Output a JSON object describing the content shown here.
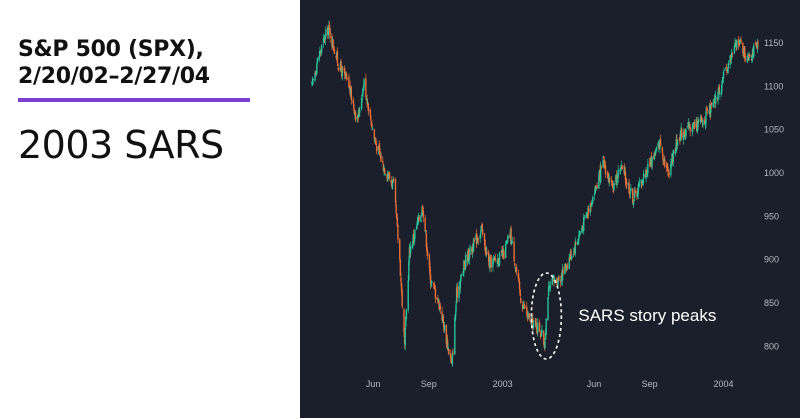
{
  "header": {
    "title_line1": "S&P 500 (SPX),",
    "title_line2": "2/20/02–2/27/04",
    "subtitle": "2003 SARS"
  },
  "colors": {
    "accent": "#7b3fd1",
    "chart_bg": "#1b1f2b",
    "up": "#2bc49b",
    "down": "#e8703a",
    "tick_text": "#b4b8c2",
    "annotation": "#ffffff"
  },
  "chart_data": {
    "type": "candlestick",
    "title": "S&P 500 (SPX), 2/20/02–2/27/04",
    "x_range": [
      "2002-02-20",
      "2004-02-27"
    ],
    "ylim": [
      775,
      1165
    ],
    "y_ticks": [
      800,
      850,
      900,
      950,
      1000,
      1050,
      1100,
      1150
    ],
    "x_ticks": [
      {
        "date": "2002-06-01",
        "label": "Jun"
      },
      {
        "date": "2002-09-01",
        "label": "Sep"
      },
      {
        "date": "2003-01-01",
        "label": "2003"
      },
      {
        "date": "2003-06-01",
        "label": "Jun"
      },
      {
        "date": "2003-09-01",
        "label": "Sep"
      },
      {
        "date": "2004-01-01",
        "label": "2004"
      }
    ],
    "grid": false,
    "legend": "none",
    "price_path": [
      [
        "2002-02-20",
        1100
      ],
      [
        "2002-03-01",
        1130
      ],
      [
        "2002-03-19",
        1168
      ],
      [
        "2002-04-05",
        1125
      ],
      [
        "2002-04-22",
        1100
      ],
      [
        "2002-05-06",
        1060
      ],
      [
        "2002-05-17",
        1105
      ],
      [
        "2002-06-03",
        1040
      ],
      [
        "2002-06-17",
        1010
      ],
      [
        "2002-07-05",
        985
      ],
      [
        "2002-07-15",
        900
      ],
      [
        "2002-07-23",
        800
      ],
      [
        "2002-07-31",
        910
      ],
      [
        "2002-08-22",
        962
      ],
      [
        "2002-09-03",
        880
      ],
      [
        "2002-09-20",
        845
      ],
      [
        "2002-10-09",
        777
      ],
      [
        "2002-10-17",
        860
      ],
      [
        "2002-11-01",
        900
      ],
      [
        "2002-11-27",
        935
      ],
      [
        "2002-12-09",
        895
      ],
      [
        "2003-01-02",
        905
      ],
      [
        "2003-01-14",
        930
      ],
      [
        "2003-01-31",
        855
      ],
      [
        "2003-02-14",
        830
      ],
      [
        "2003-03-04",
        820
      ],
      [
        "2003-03-11",
        802
      ],
      [
        "2003-03-17",
        862
      ],
      [
        "2003-03-26",
        875
      ],
      [
        "2003-04-07",
        880
      ],
      [
        "2003-04-30",
        915
      ],
      [
        "2003-05-16",
        945
      ],
      [
        "2003-06-05",
        985
      ],
      [
        "2003-06-17",
        1012
      ],
      [
        "2003-07-01",
        980
      ],
      [
        "2003-07-15",
        1008
      ],
      [
        "2003-08-05",
        970
      ],
      [
        "2003-08-28",
        1005
      ],
      [
        "2003-09-18",
        1035
      ],
      [
        "2003-10-01",
        1000
      ],
      [
        "2003-10-20",
        1045
      ],
      [
        "2003-11-14",
        1055
      ],
      [
        "2003-11-28",
        1060
      ],
      [
        "2003-12-17",
        1080
      ],
      [
        "2004-01-08",
        1125
      ],
      [
        "2004-01-26",
        1155
      ],
      [
        "2004-02-06",
        1135
      ],
      [
        "2004-02-27",
        1145
      ]
    ],
    "annotations": [
      {
        "text": "SARS story peaks",
        "date": "2003-03-11",
        "value": 835,
        "shape": "dashed-ellipse"
      }
    ]
  }
}
